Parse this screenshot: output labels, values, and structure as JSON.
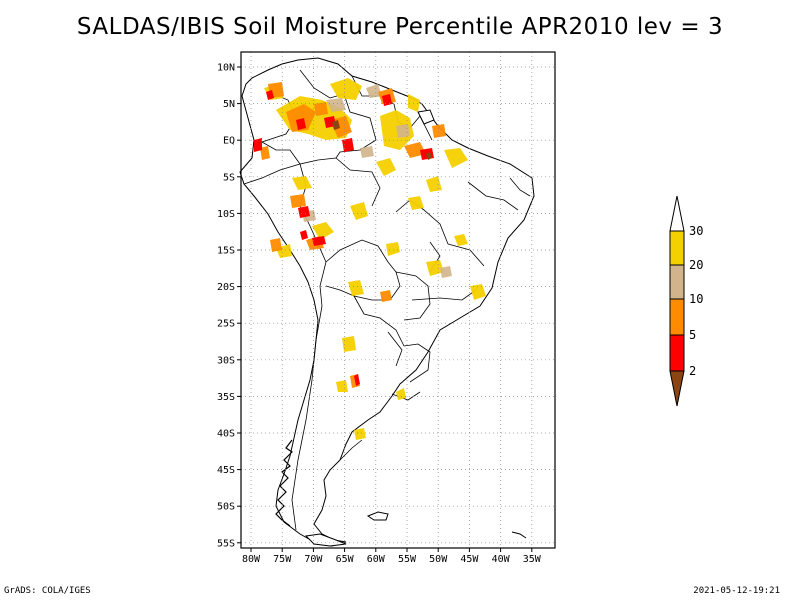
{
  "title": "SALDAS/IBIS Soil Moisture Percentile APR2010 lev = 3",
  "map": {
    "lat_ticks": [
      "10N",
      "5N",
      "EQ",
      "5S",
      "10S",
      "15S",
      "20S",
      "25S",
      "30S",
      "35S",
      "40S",
      "45S",
      "50S",
      "55S"
    ],
    "lon_ticks": [
      "80W",
      "75W",
      "70W",
      "65W",
      "60W",
      "55W",
      "50W",
      "45W",
      "40W",
      "35W"
    ],
    "lat_range": [
      -56,
      12
    ],
    "lon_range": [
      -81,
      -33
    ]
  },
  "legend": {
    "labels": [
      "30",
      "20",
      "10",
      "5",
      "2"
    ],
    "colors": {
      "above_30": "#ffffff",
      "20_30": "#f5d000",
      "10_20": "#d2b48c",
      "5_10": "#ff8c00",
      "2_5": "#ff0000",
      "below_2": "#8b4513"
    }
  },
  "footer": {
    "left": "GrADS: COLA/IGES",
    "right": "2021-05-12-19:21"
  }
}
